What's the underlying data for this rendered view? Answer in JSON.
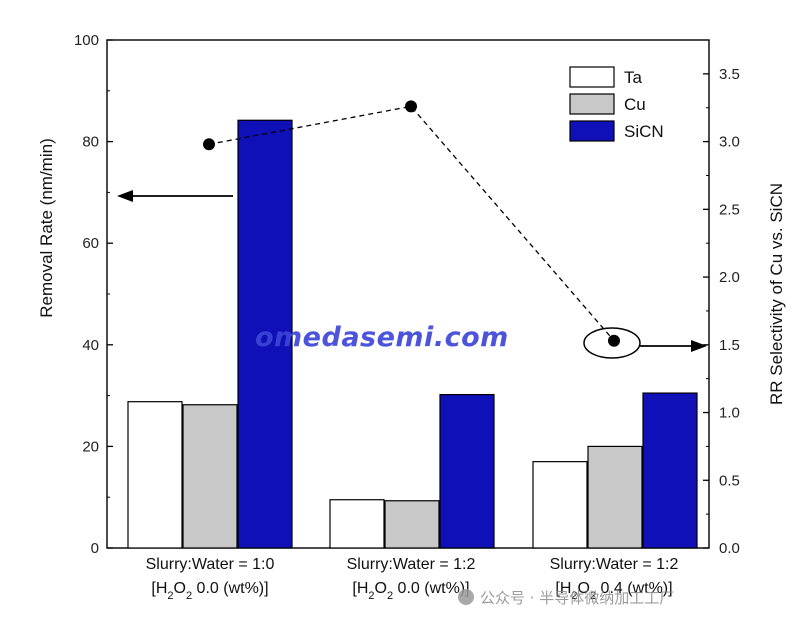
{
  "chart_data": {
    "type": "bar",
    "categories": [
      [
        "Slurry:Water = 1:0",
        "[H",
        "2",
        "O",
        "2",
        " 0.0 (wt%)]"
      ],
      [
        "Slurry:Water = 1:2",
        "[H",
        "2",
        "O",
        "2",
        " 0.0 (wt%)]"
      ],
      [
        "Slurry:Water = 1:2",
        "[H",
        "2",
        "O",
        "2",
        " 0.4 (wt%)]"
      ]
    ],
    "series": [
      {
        "name": "Ta",
        "values": [
          28.8,
          9.5,
          17.0
        ],
        "color": "#ffffff"
      },
      {
        "name": "Cu",
        "values": [
          28.2,
          9.3,
          20.0
        ],
        "color": "#c8c8c8"
      },
      {
        "name": "SiCN",
        "values": [
          84.2,
          30.2,
          30.5
        ],
        "color": "#1010b8"
      }
    ],
    "selectivity": {
      "name": "RR Selectivity of Cu vs. SiCN",
      "values": [
        2.98,
        3.26,
        1.53
      ],
      "line_style": "dashed"
    },
    "ylabel": "Removal Rate (nm/min)",
    "ylabel_right": "RR Selectivity of Cu vs. SiCN",
    "ylim": [
      0,
      100
    ],
    "ylim_right": [
      0,
      3.75
    ],
    "yticks": [
      "0",
      "20",
      "40",
      "60",
      "80",
      "100"
    ],
    "yticks_right": [
      "0.0",
      "0.5",
      "1.0",
      "1.5",
      "2.0",
      "2.5",
      "3.0",
      "3.5"
    ],
    "legend_position": "top-right",
    "annotations": [
      "arrow-left pointing to left axis",
      "ellipse with arrow pointing to right axis"
    ]
  },
  "watermark": {
    "text": "omedasemi.com",
    "source": "公众号 · 半导体微纳加工工厂"
  }
}
